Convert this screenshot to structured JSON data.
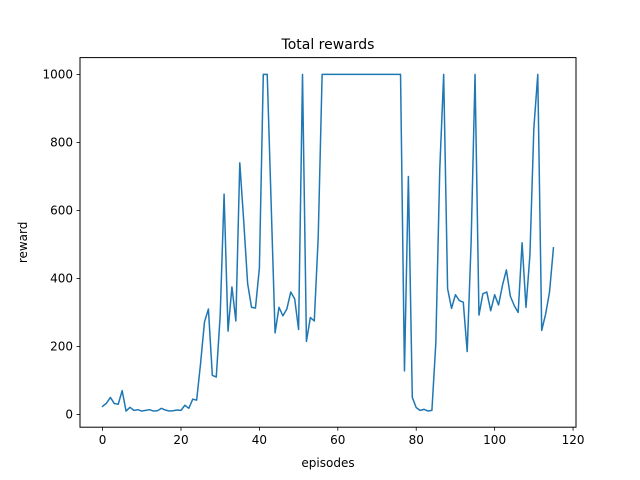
{
  "chart_data": {
    "type": "line",
    "title": "Total rewards",
    "xlabel": "episodes",
    "ylabel": "reward",
    "xlim": [
      -5.75,
      120.75
    ],
    "ylim": [
      -37.5,
      1049.5
    ],
    "xticks": [
      0,
      20,
      40,
      60,
      80,
      100,
      120
    ],
    "yticks": [
      0,
      200,
      400,
      600,
      800,
      1000
    ],
    "grid": false,
    "legend": "none",
    "series": [
      {
        "color": "#1f77b4",
        "x": [
          0,
          1,
          2,
          3,
          4,
          5,
          6,
          7,
          8,
          9,
          10,
          11,
          12,
          13,
          14,
          15,
          16,
          17,
          18,
          19,
          20,
          21,
          22,
          23,
          24,
          25,
          26,
          27,
          28,
          29,
          30,
          31,
          32,
          33,
          34,
          35,
          36,
          37,
          38,
          39,
          40,
          41,
          42,
          43,
          44,
          45,
          46,
          47,
          48,
          49,
          50,
          51,
          52,
          53,
          54,
          55,
          56,
          57,
          58,
          59,
          60,
          61,
          62,
          63,
          64,
          65,
          66,
          67,
          68,
          69,
          70,
          71,
          72,
          73,
          74,
          75,
          76,
          77,
          78,
          79,
          80,
          81,
          82,
          83,
          84,
          85,
          86,
          87,
          88,
          89,
          90,
          91,
          92,
          93,
          94,
          95,
          96,
          97,
          98,
          99,
          100,
          101,
          102,
          103,
          104,
          105,
          106,
          107,
          108,
          109,
          110,
          111,
          112,
          113,
          114,
          115
        ],
        "y": [
          24,
          33,
          50,
          32,
          30,
          70,
          10,
          21,
          12,
          14,
          10,
          12,
          14,
          10,
          11,
          18,
          13,
          10,
          11,
          13,
          12,
          27,
          18,
          45,
          42,
          150,
          272,
          310,
          115,
          110,
          290,
          648,
          245,
          375,
          275,
          740,
          570,
          385,
          315,
          313,
          430,
          1000,
          1000,
          620,
          240,
          315,
          290,
          310,
          360,
          340,
          250,
          1000,
          215,
          285,
          275,
          520,
          1000,
          1000,
          1000,
          1000,
          1000,
          1000,
          1000,
          1000,
          1000,
          1000,
          1000,
          1000,
          1000,
          1000,
          1000,
          1000,
          1000,
          1000,
          1000,
          1000,
          1000,
          128,
          700,
          50,
          20,
          12,
          15,
          10,
          12,
          210,
          720,
          1000,
          370,
          312,
          352,
          335,
          330,
          185,
          505,
          1000,
          292,
          355,
          360,
          305,
          352,
          322,
          380,
          425,
          348,
          320,
          300,
          505,
          315,
          470,
          842,
          1000,
          247,
          295,
          360,
          490
        ]
      }
    ]
  }
}
